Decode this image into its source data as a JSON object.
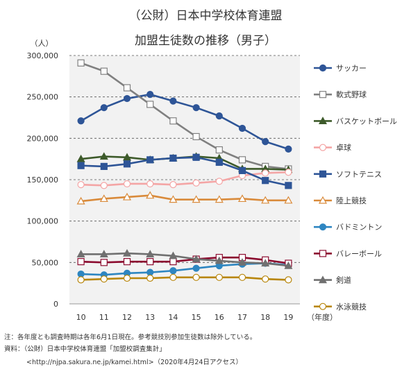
{
  "chart_data": {
    "type": "line",
    "title": "（公財）日本中学校体育連盟",
    "subtitle": "加盟生徒数の推移（男子）",
    "ylabel": "（人）",
    "xlabel": "（年度）",
    "x": [
      "10",
      "11",
      "12",
      "13",
      "14",
      "15",
      "16",
      "17",
      "18",
      "19"
    ],
    "ylim": [
      0,
      300000
    ],
    "yticks": [
      "0",
      "50,000",
      "100,000",
      "150,000",
      "200,000",
      "250,000",
      "300,000"
    ],
    "grid": "horizontal dashed",
    "legend_position": "right",
    "series": [
      {
        "name": "サッカー",
        "color": "#2e5597",
        "marker": "circle-filled",
        "values": [
          221000,
          237000,
          248000,
          253000,
          245000,
          237000,
          227000,
          212000,
          196000,
          187000
        ]
      },
      {
        "name": "軟式野球",
        "color": "#808080",
        "marker": "square-open",
        "values": [
          291000,
          281000,
          261000,
          241000,
          221000,
          202000,
          186000,
          174000,
          166000,
          163000
        ]
      },
      {
        "name": "バスケットボール",
        "color": "#3d5a2a",
        "marker": "triangle-filled",
        "values": [
          175000,
          178000,
          177000,
          174000,
          176000,
          178000,
          176000,
          163000,
          163000,
          162000
        ]
      },
      {
        "name": "卓球",
        "color": "#f4a5a5",
        "marker": "circle-open",
        "values": [
          144000,
          143000,
          145000,
          145000,
          144000,
          146000,
          148000,
          155000,
          158000,
          159000
        ]
      },
      {
        "name": "ソフトテニス",
        "color": "#2e5597",
        "marker": "square-filled",
        "values": [
          167000,
          166000,
          169000,
          174000,
          176000,
          177000,
          171000,
          161000,
          149000,
          143000
        ]
      },
      {
        "name": "陸上競技",
        "color": "#d98a3a",
        "marker": "triangle-open",
        "values": [
          124000,
          127000,
          129000,
          131000,
          126000,
          126000,
          126000,
          127000,
          125000,
          125000
        ]
      },
      {
        "name": "バドミントン",
        "color": "#2e86c1",
        "marker": "circle-filled",
        "values": [
          36000,
          35000,
          37000,
          38000,
          40000,
          43000,
          46000,
          48000,
          49000,
          47000
        ]
      },
      {
        "name": "バレーボール",
        "color": "#8b0a2e",
        "marker": "square-open",
        "values": [
          51000,
          50000,
          51000,
          51000,
          51000,
          54000,
          56000,
          56000,
          53000,
          49000
        ]
      },
      {
        "name": "剣道",
        "color": "#707070",
        "marker": "triangle-filled",
        "values": [
          60000,
          60000,
          61000,
          60000,
          58000,
          54000,
          52000,
          50000,
          49000,
          46000
        ]
      },
      {
        "name": "水泳競技",
        "color": "#b8860b",
        "marker": "circle-open",
        "values": [
          29000,
          30000,
          31000,
          31000,
          32000,
          32000,
          32000,
          32000,
          30000,
          29000
        ]
      }
    ],
    "notes": [
      "注：各年度とも調査時期は各年6月1日現在。参考競技別参加生徒数は除外している。",
      "資料：（公財）日本中学校体育連盟「加盟校調査集計」",
      "<http://njpa.sakura.ne.jp/kamei.html>（2020年4月24日アクセス）"
    ]
  }
}
